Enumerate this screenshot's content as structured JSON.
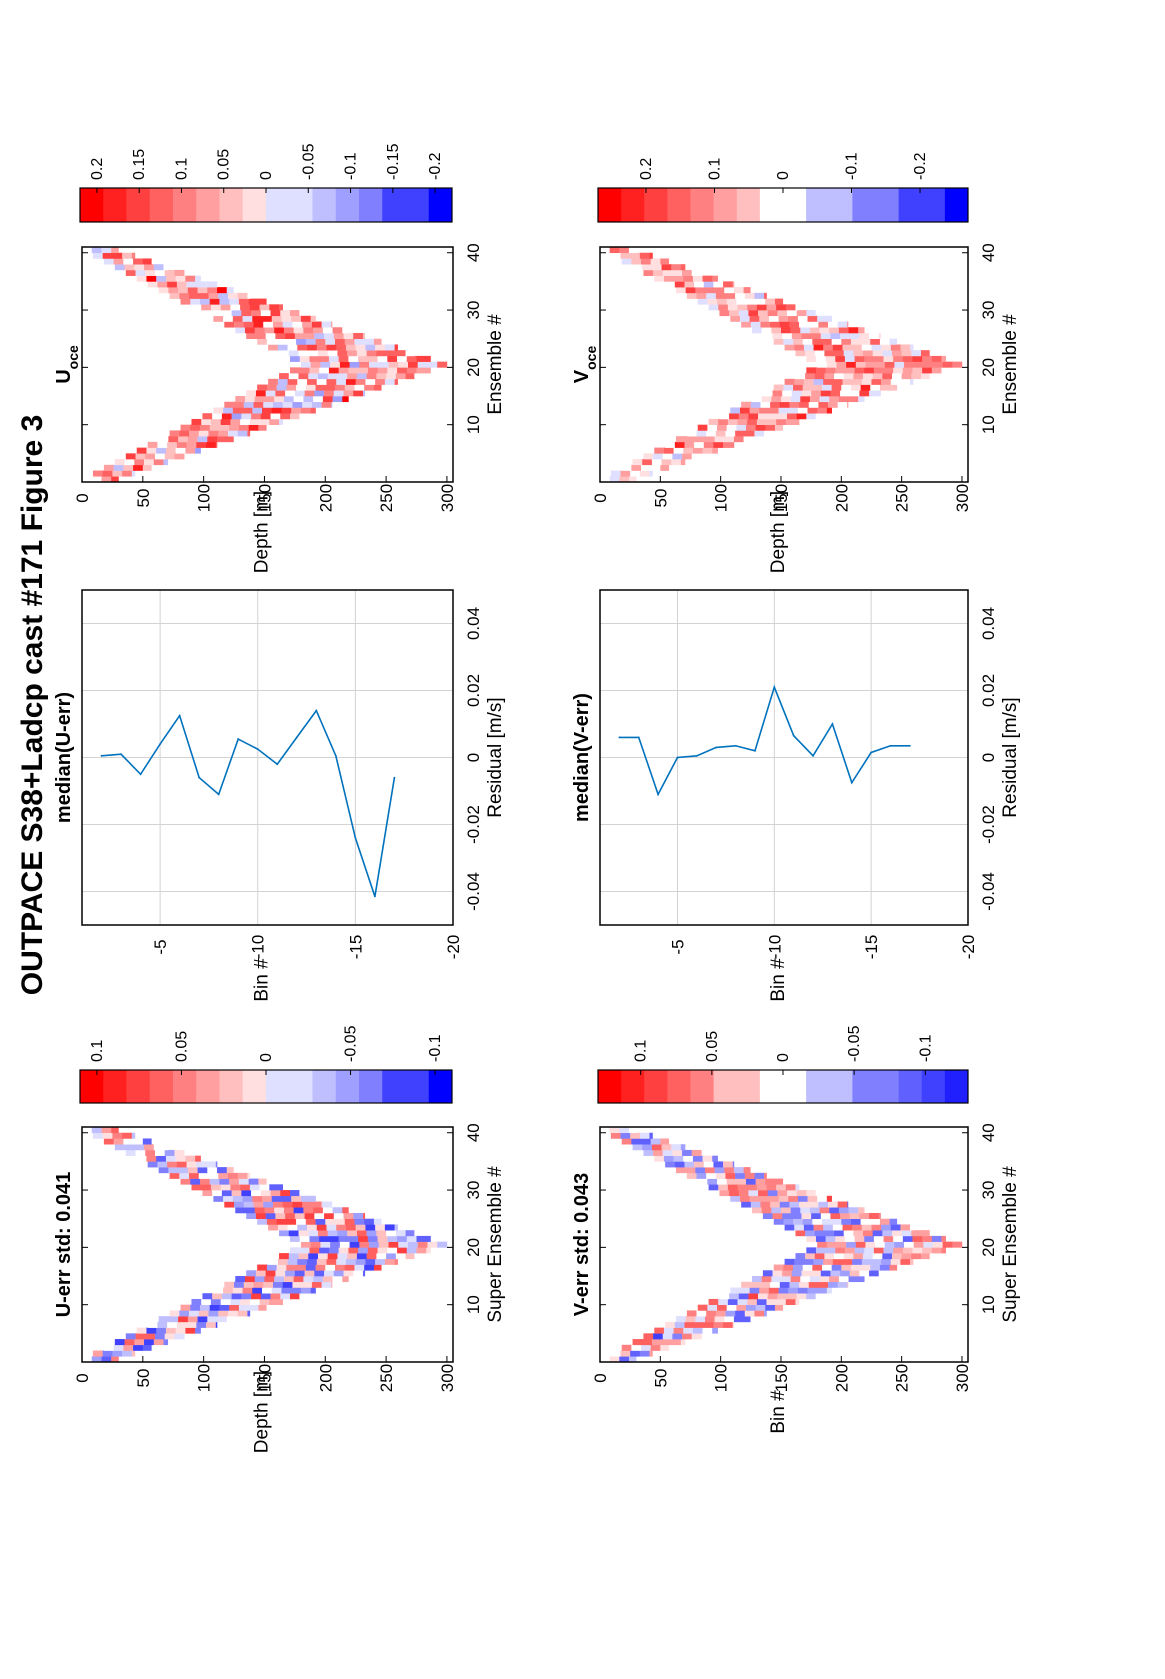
{
  "figure": {
    "title": "OUTPACE S38+Ladcp cast #171  Figure 3"
  },
  "colors": {
    "heat_positive": "#ff0000",
    "heat_zero": "#ffffff",
    "heat_negative": "#0000ff",
    "line": "#0072bd",
    "grid": "#d3d3d3",
    "axis": "#000000"
  },
  "chart_data": [
    {
      "type": "heatmap",
      "title": "U-err std: 0.041",
      "xlabel": "Super Ensemble #",
      "ylabel": "Depth [m]",
      "xlim": [
        1,
        41
      ],
      "ylim": [
        0,
        305
      ],
      "x_ticks": [
        "10",
        "20",
        "30",
        "40"
      ],
      "y_ticks": [
        "0",
        "50",
        "100",
        "150",
        "200",
        "250",
        "300"
      ],
      "colorbar_ticks": [
        "0.1",
        "0.05",
        "0",
        "-0.05",
        "-0.1"
      ],
      "clim": [
        -0.11,
        0.11
      ],
      "seed": 11,
      "amplitude": 0.085,
      "bias": 0.0,
      "cell_height_m": 8,
      "profile": "v_shape_bottom_300m_at_ensemble_21"
    },
    {
      "type": "line",
      "title": "median(U-err)",
      "xlabel": "Residual [m/s]",
      "ylabel": "Bin #",
      "x_ticks": [
        "-0.04",
        "-0.02",
        "0",
        "0.02",
        "0.04"
      ],
      "y_ticks": [
        "-5",
        "-10",
        "-15",
        "-20"
      ],
      "xlim": [
        -0.05,
        0.05
      ],
      "ylim": [
        -20,
        -1
      ],
      "bins": [
        -2,
        -3,
        -4,
        -5,
        -6,
        -7,
        -8,
        -9,
        -10,
        -11,
        -12,
        -13,
        -14,
        -15,
        -16,
        -17
      ],
      "values": [
        0.0005,
        0.001,
        -0.005,
        0.004,
        0.0125,
        -0.006,
        -0.011,
        0.0055,
        0.0025,
        -0.002,
        0.006,
        0.014,
        0.0005,
        -0.024,
        -0.0415,
        -0.006
      ]
    },
    {
      "type": "heatmap",
      "title": "U",
      "title_subscript": "oce",
      "xlabel": "Ensemble #",
      "ylabel": "Depth [m]",
      "xlim": [
        1,
        41
      ],
      "ylim": [
        0,
        305
      ],
      "x_ticks": [
        "10",
        "20",
        "30",
        "40"
      ],
      "y_ticks": [
        "0",
        "50",
        "100",
        "150",
        "200",
        "250",
        "300"
      ],
      "colorbar_ticks": [
        "0.2",
        "0.15",
        "0.1",
        "0.05",
        "0",
        "-0.05",
        "-0.1",
        "-0.15",
        "-0.2"
      ],
      "clim": [
        -0.22,
        0.22
      ],
      "seed": 23,
      "amplitude": 0.12,
      "bias": 0.07,
      "cell_height_m": 8,
      "profile": "v_shape_bottom_300m_at_ensemble_21"
    },
    {
      "type": "heatmap",
      "title": "V-err std: 0.043",
      "xlabel": "Super Ensemble #",
      "ylabel": "Bin #",
      "xlim": [
        1,
        41
      ],
      "ylim": [
        0,
        305
      ],
      "x_ticks": [
        "10",
        "20",
        "30",
        "40"
      ],
      "y_ticks": [
        "0",
        "50",
        "100",
        "150",
        "200",
        "250",
        "300"
      ],
      "colorbar_ticks": [
        "0.1",
        "0.05",
        "0",
        "-0.05",
        "-0.1"
      ],
      "clim": [
        -0.13,
        0.13
      ],
      "seed": 37,
      "amplitude": 0.09,
      "bias": 0.0,
      "cell_height_m": 8,
      "profile": "v_shape_bottom_300m_at_ensemble_21"
    },
    {
      "type": "line",
      "title": "median(V-err)",
      "xlabel": "Residual [m/s]",
      "ylabel": "Bin #",
      "x_ticks": [
        "-0.04",
        "-0.02",
        "0",
        "0.02",
        "0.04"
      ],
      "y_ticks": [
        "-5",
        "-10",
        "-15",
        "-20"
      ],
      "xlim": [
        -0.05,
        0.05
      ],
      "ylim": [
        -20,
        -1
      ],
      "bins": [
        -2,
        -3,
        -4,
        -5,
        -6,
        -7,
        -8,
        -9,
        -10,
        -11,
        -12,
        -13,
        -14,
        -15,
        -16,
        -17
      ],
      "values": [
        0.006,
        0.006,
        -0.011,
        0.0,
        0.0005,
        0.003,
        0.0035,
        0.002,
        0.021,
        0.0065,
        0.0005,
        0.01,
        -0.0075,
        0.0015,
        0.0035,
        0.0035
      ]
    },
    {
      "type": "heatmap",
      "title": "V",
      "title_subscript": "oce",
      "xlabel": "Ensemble #",
      "ylabel": "Depth [m]",
      "xlim": [
        1,
        41
      ],
      "ylim": [
        0,
        305
      ],
      "x_ticks": [
        "10",
        "20",
        "30",
        "40"
      ],
      "y_ticks": [
        "0",
        "50",
        "100",
        "150",
        "200",
        "250",
        "300"
      ],
      "colorbar_ticks": [
        "0.2",
        "0.1",
        "0",
        "-0.1",
        "-0.2"
      ],
      "clim": [
        -0.27,
        0.27
      ],
      "seed": 53,
      "amplitude": 0.13,
      "bias": 0.09,
      "cell_height_m": 8,
      "profile": "v_shape_bottom_300m_at_ensemble_21"
    }
  ]
}
